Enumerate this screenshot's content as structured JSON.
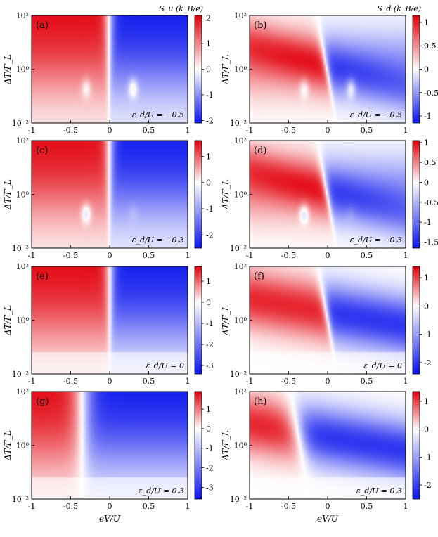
{
  "colors": {
    "positive": "#e3000b",
    "zero": "#ffffff",
    "negative": "#0a14ee"
  },
  "chart_data": [
    {
      "type": "heatmap",
      "panel": "(a)",
      "colorbar_title": "S_u (k_B/e)",
      "annotation": "ε_d/U = −0.5",
      "xlabel": "",
      "ylabel": "ΔT/Γ_L",
      "x_ticks": [
        "-1",
        "-0.5",
        "0",
        "0.5",
        "1"
      ],
      "y_ticks": [
        "10²",
        "10⁰",
        "10⁻²"
      ],
      "xlim": [
        -1,
        1
      ],
      "ylim_log10": [
        -2,
        2
      ],
      "colorbar_ticks": [
        "2",
        "1",
        "0",
        "-1",
        "-2"
      ],
      "zlim": [
        -2.1,
        2.1
      ],
      "ed": -0.5,
      "kind": "u"
    },
    {
      "type": "heatmap",
      "panel": "(b)",
      "colorbar_title": "S_d (k_B/e)",
      "annotation": "ε_d/U = −0.5",
      "xlabel": "",
      "ylabel": "ΔT/Γ_L",
      "x_ticks": [
        "-1",
        "-0.5",
        "0",
        "0.5",
        "1"
      ],
      "y_ticks": [
        "10²",
        "10⁰",
        "10⁻²"
      ],
      "xlim": [
        -1,
        1
      ],
      "ylim_log10": [
        -2,
        2
      ],
      "colorbar_ticks": [
        "1",
        "0.5",
        "0",
        "-0.5",
        "-1"
      ],
      "zlim": [
        -1.15,
        1.15
      ],
      "ed": -0.5,
      "kind": "d"
    },
    {
      "type": "heatmap",
      "panel": "(c)",
      "colorbar_title": "",
      "annotation": "ε_d/U = −0.3",
      "xlabel": "",
      "ylabel": "ΔT/Γ_L",
      "x_ticks": [
        "-1",
        "-0.5",
        "0",
        "0.5",
        "1"
      ],
      "y_ticks": [
        "10²",
        "10⁰",
        "10⁻²"
      ],
      "xlim": [
        -1,
        1
      ],
      "ylim_log10": [
        -2,
        2
      ],
      "colorbar_ticks": [
        "1",
        "0",
        "-1",
        "-2"
      ],
      "zlim": [
        -2.5,
        1.6
      ],
      "ed": -0.3,
      "kind": "u"
    },
    {
      "type": "heatmap",
      "panel": "(d)",
      "colorbar_title": "",
      "annotation": "ε_d/U = −0.3",
      "xlabel": "",
      "ylabel": "ΔT/Γ_L",
      "x_ticks": [
        "-1",
        "-0.5",
        "0",
        "0.5",
        "1"
      ],
      "y_ticks": [
        "10²",
        "10⁰",
        "10⁻²"
      ],
      "xlim": [
        -1,
        1
      ],
      "ylim_log10": [
        -2,
        2
      ],
      "colorbar_ticks": [
        "1",
        "0.5",
        "0",
        "-0.5",
        "-1",
        "-1.5"
      ],
      "zlim": [
        -1.65,
        1.05
      ],
      "ed": -0.3,
      "kind": "d"
    },
    {
      "type": "heatmap",
      "panel": "(e)",
      "colorbar_title": "",
      "annotation": "ε_d/U = 0",
      "xlabel": "",
      "ylabel": "ΔT/Γ_L",
      "x_ticks": [
        "-1",
        "-0.5",
        "0",
        "0.5",
        "1"
      ],
      "y_ticks": [
        "10²",
        "10⁰",
        "10⁻²"
      ],
      "xlim": [
        -1,
        1
      ],
      "ylim_log10": [
        -2,
        2
      ],
      "colorbar_ticks": [
        "1",
        "0",
        "-1",
        "-2",
        "-3"
      ],
      "zlim": [
        -3.4,
        1.7
      ],
      "ed": 0,
      "kind": "u"
    },
    {
      "type": "heatmap",
      "panel": "(f)",
      "colorbar_title": "",
      "annotation": "ε_d/U = 0",
      "xlabel": "",
      "ylabel": "ΔT/Γ_L",
      "x_ticks": [
        "-1",
        "-0.5",
        "0",
        "0.5",
        "1"
      ],
      "y_ticks": [
        "10²",
        "10⁰",
        "10⁻²"
      ],
      "xlim": [
        -1,
        1
      ],
      "ylim_log10": [
        -2,
        2
      ],
      "colorbar_ticks": [
        "1",
        "0",
        "-1",
        "-2"
      ],
      "zlim": [
        -2.4,
        1.4
      ],
      "ed": 0,
      "kind": "d"
    },
    {
      "type": "heatmap",
      "panel": "(g)",
      "colorbar_title": "",
      "annotation": "ε_d/U = 0.3",
      "xlabel": "eV/U",
      "ylabel": "ΔT/Γ_L",
      "x_ticks": [
        "-1",
        "-0.5",
        "0",
        "0.5",
        "1"
      ],
      "y_ticks": [
        "10²",
        "10⁰",
        "10⁻²"
      ],
      "xlim": [
        -1,
        1
      ],
      "ylim_log10": [
        -2,
        2
      ],
      "colorbar_ticks": [
        "1",
        "0",
        "-1",
        "-2",
        "-3"
      ],
      "zlim": [
        -3.6,
        1.9
      ],
      "ed": 0.3,
      "kind": "u"
    },
    {
      "type": "heatmap",
      "panel": "(h)",
      "colorbar_title": "",
      "annotation": "ε_d/U = 0.3",
      "xlabel": "eV/U",
      "ylabel": "ΔT/Γ_L",
      "x_ticks": [
        "-1",
        "-0.5",
        "0",
        "0.5",
        "1"
      ],
      "y_ticks": [
        "10²",
        "10⁰",
        "10⁻²"
      ],
      "xlim": [
        -1,
        1
      ],
      "ylim_log10": [
        -2,
        2
      ],
      "colorbar_ticks": [
        "1",
        "0",
        "-1",
        "-2"
      ],
      "zlim": [
        -2.5,
        1.35
      ],
      "ed": 0.3,
      "kind": "d"
    }
  ]
}
